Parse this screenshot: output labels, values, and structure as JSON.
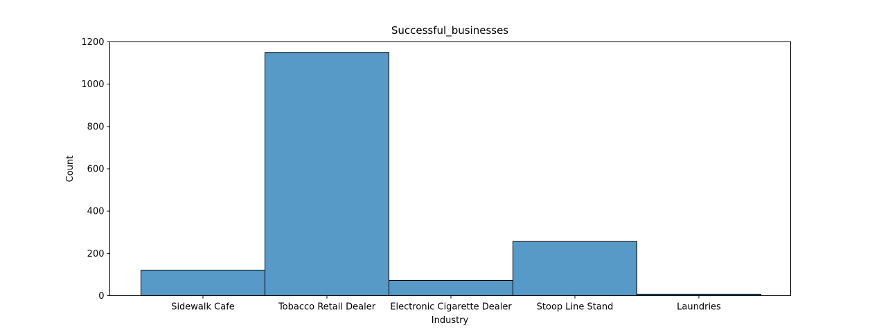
{
  "chart_data": {
    "type": "bar",
    "title": "Successful_businesses",
    "xlabel": "Industry",
    "ylabel": "Count",
    "categories": [
      "Sidewalk Cafe",
      "Tobacco Retail Dealer",
      "Electronic Cigarette Dealer",
      "Stoop Line Stand",
      "Laundries"
    ],
    "values": [
      121,
      1150,
      72,
      256,
      7
    ],
    "ylim": [
      0,
      1200
    ],
    "yticks": [
      0,
      200,
      400,
      600,
      800,
      1000,
      1200
    ],
    "grid": false,
    "legend": "none",
    "bar_color": "#5799c7",
    "edge_color": "#000000"
  }
}
